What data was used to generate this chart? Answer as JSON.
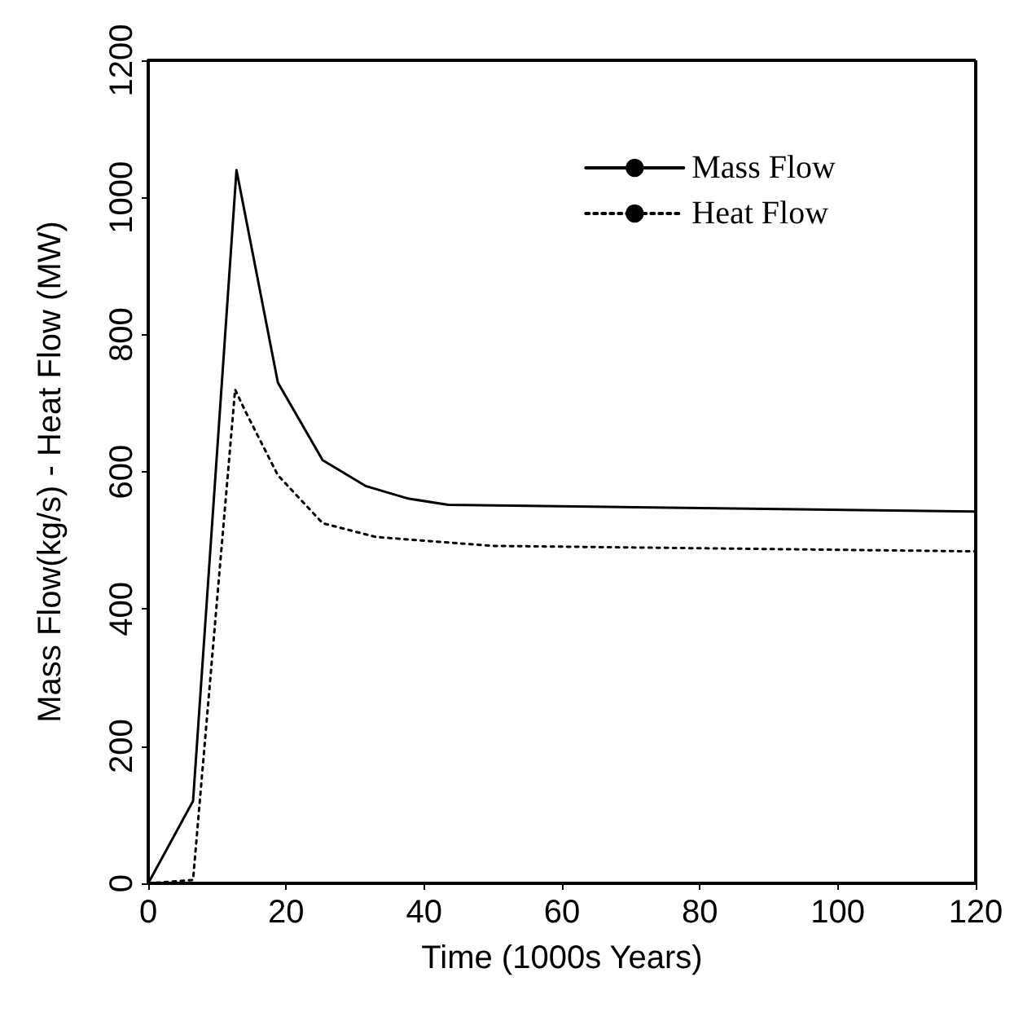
{
  "chart_data": {
    "type": "line",
    "xlabel": "Time (1000s Years)",
    "ylabel": "Mass Flow(kg/s) - Heat Flow (MW)",
    "xlim": [
      0,
      120
    ],
    "xticks": [
      0,
      20,
      40,
      60,
      80,
      100,
      120
    ],
    "ylim": [
      0,
      1200
    ],
    "yticks": [
      0,
      200,
      400,
      600,
      800,
      1000,
      1200
    ],
    "grid": false,
    "legend": "top right",
    "marker": "none",
    "series": [
      {
        "name": "Mass Flow",
        "color": "#000000",
        "line_style": "solid",
        "x": [
          0,
          6.5,
          12.8,
          18.8,
          25.3,
          31.6,
          37.7,
          43.5,
          120
        ],
        "values": [
          0,
          120,
          1040,
          730,
          617,
          579,
          561,
          552,
          542
        ]
      },
      {
        "name": "Heat Flow",
        "color": "#000000",
        "line_style": "dotted",
        "x": [
          0,
          6.5,
          12.6,
          14,
          18.8,
          25.3,
          33,
          50,
          120
        ],
        "values": [
          0,
          5,
          720,
          690,
          595,
          525,
          505,
          492,
          484
        ]
      }
    ]
  }
}
